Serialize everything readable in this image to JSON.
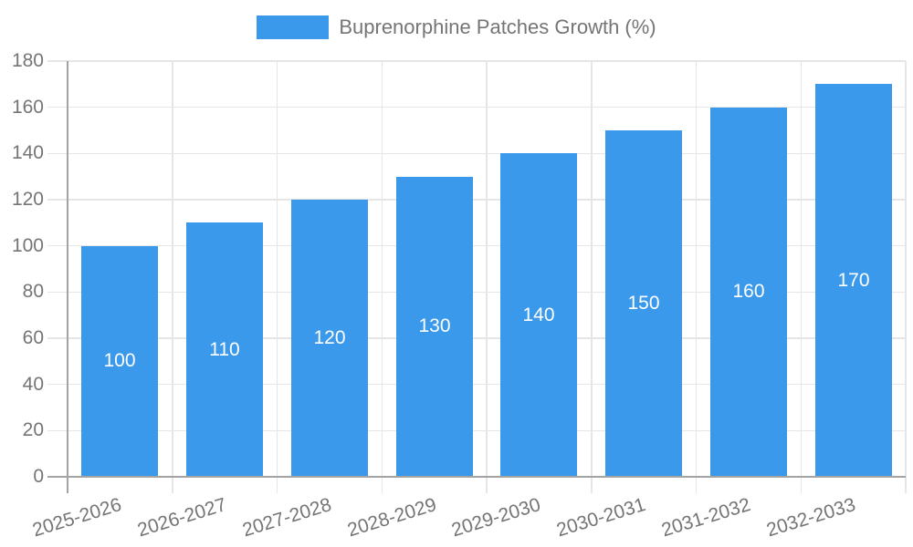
{
  "chart_data": {
    "type": "bar",
    "title": "Buprenorphine Patches Growth (%)",
    "legend_position": "top",
    "categories": [
      "2025-2026",
      "2026-2027",
      "2027-2028",
      "2028-2029",
      "2029-2030",
      "2030-2031",
      "2031-2032",
      "2032-2033"
    ],
    "series": [
      {
        "name": "Buprenorphine Patches Growth (%)",
        "values": [
          100,
          110,
          120,
          130,
          140,
          150,
          160,
          170
        ]
      }
    ],
    "xlabel": "",
    "ylabel": "",
    "ylim": [
      0,
      180
    ],
    "ytick_step": 20,
    "ytick_labels": [
      "0",
      "20",
      "40",
      "60",
      "80",
      "100",
      "120",
      "140",
      "160",
      "180"
    ],
    "grid": true,
    "value_labels_shown": true,
    "colors": {
      "bar": "#3b99ec",
      "value_label": "#ffffff",
      "axis_text": "#757575",
      "legend_text": "#757575",
      "grid_line": "#e6e6e6",
      "axis_line": "#a3a3a3"
    }
  }
}
